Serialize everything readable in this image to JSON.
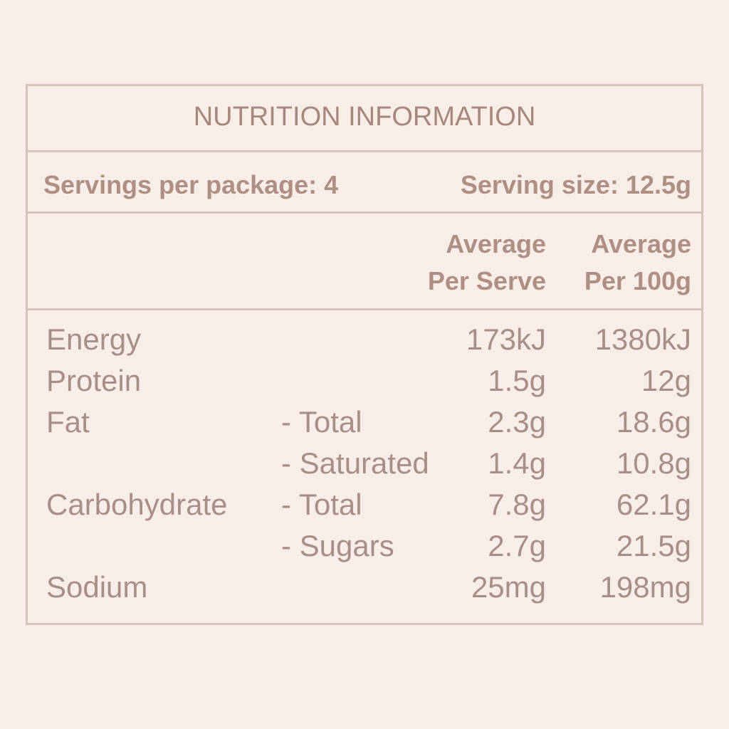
{
  "title": "NUTRITION INFORMATION",
  "servings_per_package": "Servings per package: 4",
  "serving_size": "Serving size: 12.5g",
  "columns": {
    "per_serve_line1": "Average",
    "per_serve_line2": "Per Serve",
    "per_100g_line1": "Average",
    "per_100g_line2": "Per 100g"
  },
  "rows": [
    {
      "nutrient": "Energy",
      "sub": "",
      "per_serve": "173kJ",
      "per_100g": "1380kJ"
    },
    {
      "nutrient": "Protein",
      "sub": "",
      "per_serve": "1.5g",
      "per_100g": "12g"
    },
    {
      "nutrient": "Fat",
      "sub": "- Total",
      "per_serve": "2.3g",
      "per_100g": "18.6g"
    },
    {
      "nutrient": "",
      "sub": "- Saturated",
      "per_serve": "1.4g",
      "per_100g": "10.8g"
    },
    {
      "nutrient": "Carbohydrate",
      "sub": "- Total",
      "per_serve": "7.8g",
      "per_100g": "62.1g"
    },
    {
      "nutrient": "",
      "sub": "- Sugars",
      "per_serve": "2.7g",
      "per_100g": "21.5g"
    },
    {
      "nutrient": "Sodium",
      "sub": "",
      "per_serve": "25mg",
      "per_100g": "198mg"
    }
  ]
}
